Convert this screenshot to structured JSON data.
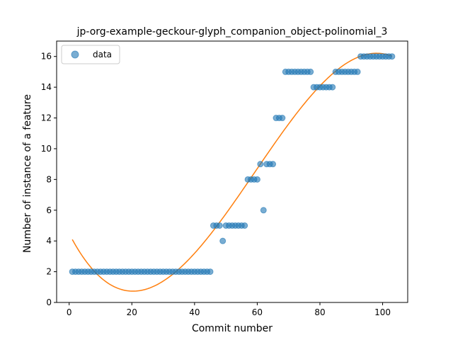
{
  "chart_data": {
    "type": "scatter",
    "title": "jp-org-example-geckour-glyph_companion_object-polinomial_3",
    "xlabel": "Commit number",
    "ylabel": "Number of instance of a feature",
    "xlim": [
      -4,
      108
    ],
    "ylim": [
      0,
      17
    ],
    "xticks": [
      0,
      20,
      40,
      60,
      80,
      100
    ],
    "yticks": [
      0,
      2,
      4,
      6,
      8,
      10,
      12,
      14,
      16
    ],
    "grid": false,
    "legend": {
      "placement": "top-left",
      "entries": [
        "data"
      ]
    },
    "colors": {
      "data": "#1f77b4",
      "fit": "#ff7f0e"
    },
    "series": [
      {
        "name": "data",
        "kind": "scatter",
        "x": [
          1,
          2,
          3,
          4,
          5,
          6,
          7,
          8,
          9,
          10,
          11,
          12,
          13,
          14,
          15,
          16,
          17,
          18,
          19,
          20,
          21,
          22,
          23,
          24,
          25,
          26,
          27,
          28,
          29,
          30,
          31,
          32,
          33,
          34,
          35,
          36,
          37,
          38,
          39,
          40,
          41,
          42,
          43,
          44,
          45,
          46,
          47,
          48,
          49,
          50,
          51,
          52,
          53,
          54,
          55,
          56,
          57,
          58,
          59,
          60,
          61,
          62,
          63,
          64,
          65,
          66,
          67,
          68,
          69,
          70,
          71,
          72,
          73,
          74,
          75,
          76,
          77,
          78,
          79,
          80,
          81,
          82,
          83,
          84,
          85,
          86,
          87,
          88,
          89,
          90,
          91,
          92,
          93,
          94,
          95,
          96,
          97,
          98,
          99,
          100,
          101,
          102,
          103
        ],
        "y": [
          2,
          2,
          2,
          2,
          2,
          2,
          2,
          2,
          2,
          2,
          2,
          2,
          2,
          2,
          2,
          2,
          2,
          2,
          2,
          2,
          2,
          2,
          2,
          2,
          2,
          2,
          2,
          2,
          2,
          2,
          2,
          2,
          2,
          2,
          2,
          2,
          2,
          2,
          2,
          2,
          2,
          2,
          2,
          2,
          2,
          5,
          5,
          5,
          4,
          5,
          5,
          5,
          5,
          5,
          5,
          5,
          8,
          8,
          8,
          8,
          9,
          6,
          9,
          9,
          9,
          12,
          12,
          12,
          15,
          15,
          15,
          15,
          15,
          15,
          15,
          15,
          15,
          14,
          14,
          14,
          14,
          14,
          14,
          14,
          15,
          15,
          15,
          15,
          15,
          15,
          15,
          15,
          16,
          16,
          16,
          16,
          16,
          16,
          16,
          16,
          16,
          16,
          16
        ]
      },
      {
        "kind": "line",
        "fit": "polynomial-3",
        "x_range": [
          1,
          103
        ]
      }
    ]
  }
}
